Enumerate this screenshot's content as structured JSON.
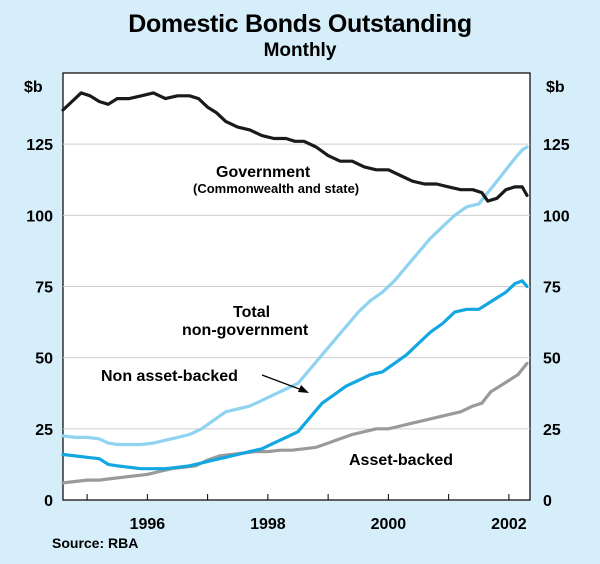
{
  "chart_data": {
    "type": "line",
    "title": "Domestic Bonds Outstanding",
    "subtitle": "Monthly",
    "source": "Source: RBA",
    "ylabel_left": "$b",
    "ylabel_right": "$b",
    "xlim": [
      1994.6,
      2002.35
    ],
    "ylim": [
      0,
      150
    ],
    "yticks": [
      0,
      25,
      50,
      75,
      100,
      125
    ],
    "xticks": [
      {
        "value": 1996,
        "label": "1996"
      },
      {
        "value": 1998,
        "label": "1998"
      },
      {
        "value": 2000,
        "label": "2000"
      },
      {
        "value": 2002,
        "label": "2002"
      }
    ],
    "series": [
      {
        "name": "Government (Commonwealth and state)",
        "color": "#1a1a1a",
        "points": [
          [
            1994.6,
            137
          ],
          [
            1994.75,
            140
          ],
          [
            1994.9,
            143
          ],
          [
            1995.05,
            142
          ],
          [
            1995.2,
            140
          ],
          [
            1995.35,
            139
          ],
          [
            1995.5,
            141
          ],
          [
            1995.7,
            141
          ],
          [
            1995.9,
            142
          ],
          [
            1996.1,
            143
          ],
          [
            1996.3,
            141
          ],
          [
            1996.5,
            142
          ],
          [
            1996.7,
            142
          ],
          [
            1996.85,
            141
          ],
          [
            1997.0,
            138
          ],
          [
            1997.15,
            136
          ],
          [
            1997.3,
            133
          ],
          [
            1997.5,
            131
          ],
          [
            1997.7,
            130
          ],
          [
            1997.9,
            128
          ],
          [
            1998.1,
            127
          ],
          [
            1998.3,
            127
          ],
          [
            1998.45,
            126
          ],
          [
            1998.6,
            126
          ],
          [
            1998.8,
            124
          ],
          [
            1999.0,
            121
          ],
          [
            1999.2,
            119
          ],
          [
            1999.4,
            119
          ],
          [
            1999.6,
            117
          ],
          [
            1999.8,
            116
          ],
          [
            2000.0,
            116
          ],
          [
            2000.2,
            114
          ],
          [
            2000.4,
            112
          ],
          [
            2000.6,
            111
          ],
          [
            2000.8,
            111
          ],
          [
            2001.0,
            110
          ],
          [
            2001.2,
            109
          ],
          [
            2001.4,
            109
          ],
          [
            2001.55,
            108
          ],
          [
            2001.65,
            105
          ],
          [
            2001.8,
            106
          ],
          [
            2001.95,
            109
          ],
          [
            2002.1,
            110
          ],
          [
            2002.22,
            110
          ],
          [
            2002.3,
            107
          ]
        ]
      },
      {
        "name": "Total non-government",
        "color": "#8fd3f0",
        "points": [
          [
            1994.6,
            22.5
          ],
          [
            1994.8,
            22
          ],
          [
            1995.0,
            22
          ],
          [
            1995.2,
            21.5
          ],
          [
            1995.35,
            20
          ],
          [
            1995.5,
            19.5
          ],
          [
            1995.7,
            19.5
          ],
          [
            1995.9,
            19.5
          ],
          [
            1996.1,
            20
          ],
          [
            1996.3,
            21
          ],
          [
            1996.5,
            22
          ],
          [
            1996.7,
            23
          ],
          [
            1996.9,
            25
          ],
          [
            1997.1,
            28
          ],
          [
            1997.3,
            31
          ],
          [
            1997.5,
            32
          ],
          [
            1997.7,
            33
          ],
          [
            1997.9,
            35
          ],
          [
            1998.1,
            37
          ],
          [
            1998.3,
            39
          ],
          [
            1998.5,
            41
          ],
          [
            1998.7,
            46
          ],
          [
            1998.9,
            51
          ],
          [
            1999.1,
            56
          ],
          [
            1999.3,
            61
          ],
          [
            1999.5,
            66
          ],
          [
            1999.7,
            70
          ],
          [
            1999.9,
            73
          ],
          [
            2000.1,
            77
          ],
          [
            2000.3,
            82
          ],
          [
            2000.5,
            87
          ],
          [
            2000.7,
            92
          ],
          [
            2000.9,
            96
          ],
          [
            2001.1,
            100
          ],
          [
            2001.3,
            103
          ],
          [
            2001.5,
            104
          ],
          [
            2001.65,
            108
          ],
          [
            2001.8,
            112
          ],
          [
            2001.95,
            116
          ],
          [
            2002.1,
            120
          ],
          [
            2002.22,
            123
          ],
          [
            2002.3,
            124
          ]
        ]
      },
      {
        "name": "Non asset-backed",
        "color": "#12a7e0",
        "points": [
          [
            1994.6,
            16
          ],
          [
            1994.8,
            15.5
          ],
          [
            1995.0,
            15
          ],
          [
            1995.2,
            14.5
          ],
          [
            1995.35,
            12.5
          ],
          [
            1995.5,
            12
          ],
          [
            1995.7,
            11.5
          ],
          [
            1995.9,
            11
          ],
          [
            1996.1,
            11
          ],
          [
            1996.3,
            11
          ],
          [
            1996.5,
            11.5
          ],
          [
            1996.7,
            12
          ],
          [
            1996.9,
            13
          ],
          [
            1997.1,
            14
          ],
          [
            1997.3,
            15
          ],
          [
            1997.5,
            16
          ],
          [
            1997.7,
            17
          ],
          [
            1997.9,
            18
          ],
          [
            1998.1,
            20
          ],
          [
            1998.3,
            22
          ],
          [
            1998.5,
            24
          ],
          [
            1998.7,
            29
          ],
          [
            1998.9,
            34
          ],
          [
            1999.1,
            37
          ],
          [
            1999.3,
            40
          ],
          [
            1999.5,
            42
          ],
          [
            1999.7,
            44
          ],
          [
            1999.9,
            45
          ],
          [
            2000.1,
            48
          ],
          [
            2000.3,
            51
          ],
          [
            2000.5,
            55
          ],
          [
            2000.7,
            59
          ],
          [
            2000.9,
            62
          ],
          [
            2001.1,
            66
          ],
          [
            2001.3,
            67
          ],
          [
            2001.5,
            67
          ],
          [
            2001.65,
            69
          ],
          [
            2001.8,
            71
          ],
          [
            2001.95,
            73
          ],
          [
            2002.1,
            76
          ],
          [
            2002.22,
            77
          ],
          [
            2002.3,
            75
          ]
        ]
      },
      {
        "name": "Asset-backed",
        "color": "#9a9a9a",
        "points": [
          [
            1994.6,
            6
          ],
          [
            1994.8,
            6.5
          ],
          [
            1995.0,
            7
          ],
          [
            1995.2,
            7
          ],
          [
            1995.4,
            7.5
          ],
          [
            1995.6,
            8
          ],
          [
            1995.8,
            8.5
          ],
          [
            1996.0,
            9
          ],
          [
            1996.2,
            10
          ],
          [
            1996.4,
            11
          ],
          [
            1996.6,
            11.5
          ],
          [
            1996.8,
            12
          ],
          [
            1997.0,
            14
          ],
          [
            1997.2,
            15.5
          ],
          [
            1997.4,
            16
          ],
          [
            1997.6,
            16.5
          ],
          [
            1997.8,
            17
          ],
          [
            1998.0,
            17
          ],
          [
            1998.2,
            17.5
          ],
          [
            1998.4,
            17.5
          ],
          [
            1998.6,
            18
          ],
          [
            1998.8,
            18.5
          ],
          [
            1999.0,
            20
          ],
          [
            1999.2,
            21.5
          ],
          [
            1999.4,
            23
          ],
          [
            1999.6,
            24
          ],
          [
            1999.8,
            25
          ],
          [
            2000.0,
            25
          ],
          [
            2000.2,
            26
          ],
          [
            2000.4,
            27
          ],
          [
            2000.6,
            28
          ],
          [
            2000.8,
            29
          ],
          [
            2001.0,
            30
          ],
          [
            2001.2,
            31
          ],
          [
            2001.4,
            33
          ],
          [
            2001.55,
            34
          ],
          [
            2001.7,
            38
          ],
          [
            2001.85,
            40
          ],
          [
            2002.0,
            42
          ],
          [
            2002.15,
            44
          ],
          [
            2002.3,
            48
          ]
        ]
      }
    ],
    "annotations": {
      "government": "Government",
      "government_sub": "(Commonwealth and state)",
      "total_line1": "Total",
      "total_line2": "non-government",
      "non_asset": "Non asset-backed",
      "asset": "Asset-backed"
    }
  }
}
